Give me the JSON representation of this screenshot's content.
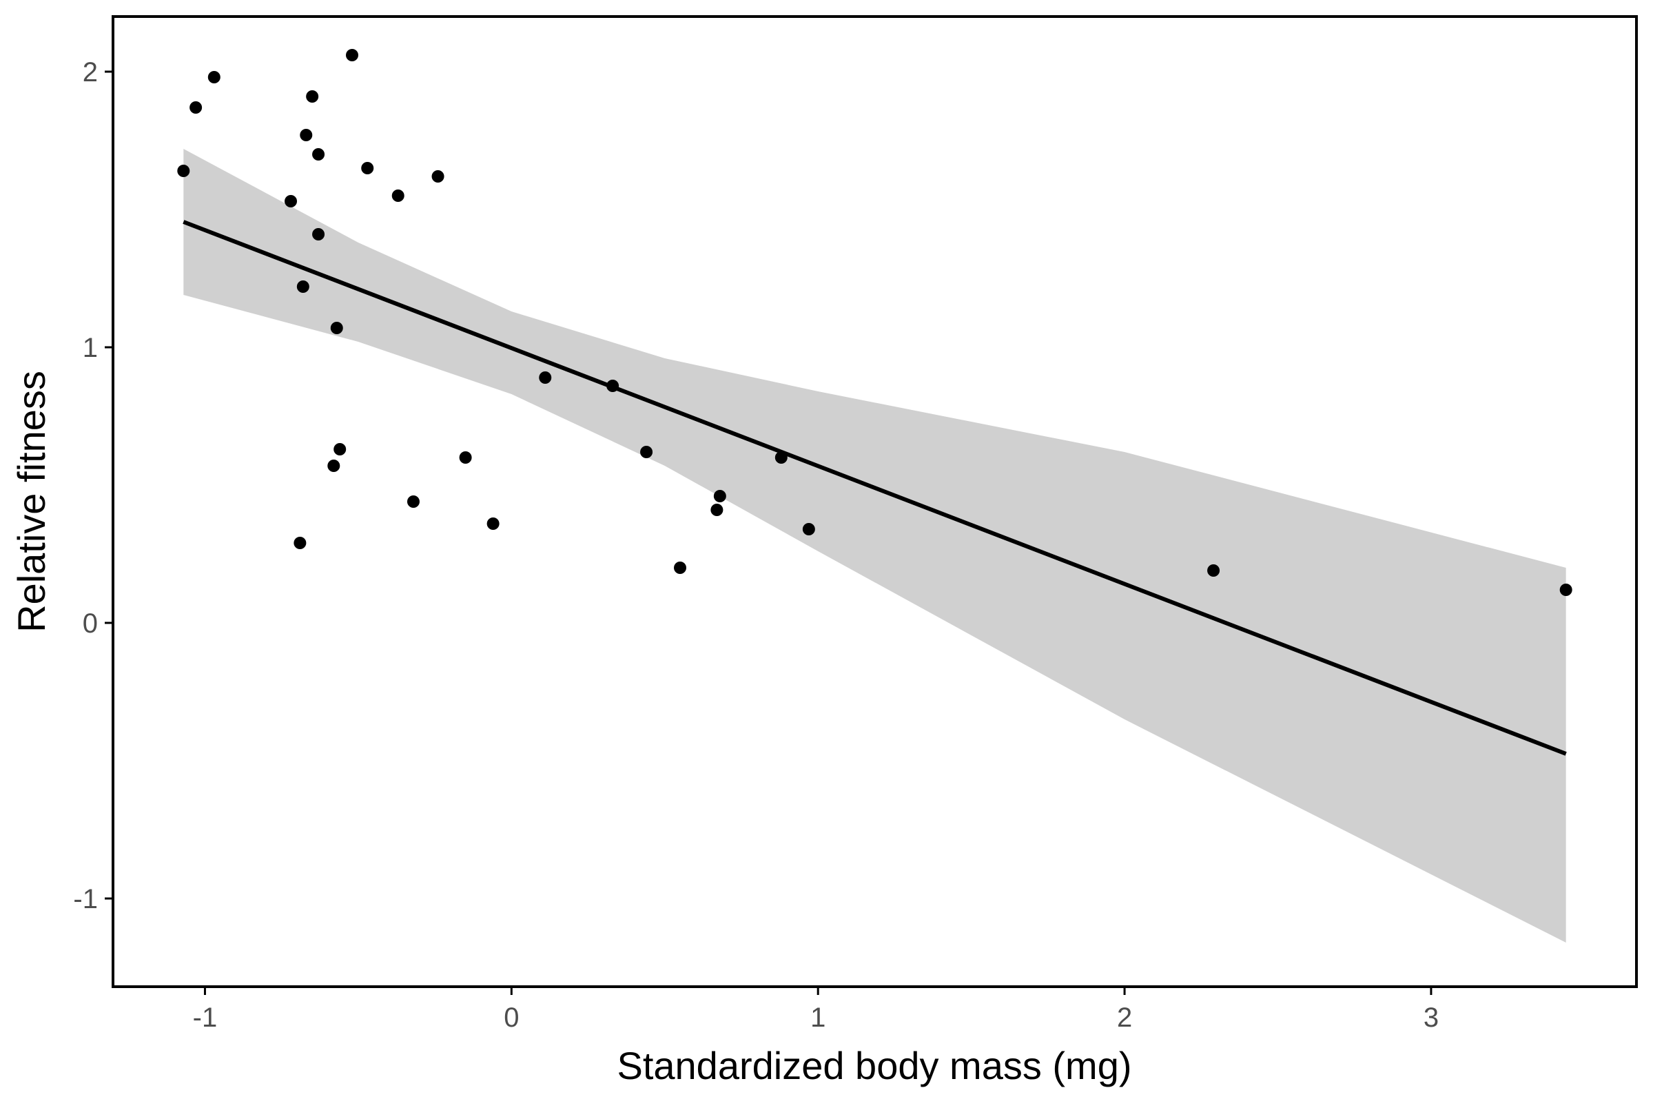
{
  "chart_data": {
    "type": "scatter",
    "title": "",
    "xlabel": "Standardized body mass (mg)",
    "ylabel": "Relative fitness",
    "xlim": [
      -1.3,
      3.67
    ],
    "ylim": [
      -1.32,
      2.2
    ],
    "xticks": [
      -1,
      0,
      1,
      2,
      3
    ],
    "yticks": [
      -1,
      0,
      1,
      2
    ],
    "grid": false,
    "legend": "none",
    "colors": {
      "points": "#000000",
      "fit_line": "#000000",
      "confidence_band": "#d0d0d0",
      "axis": "#000000",
      "tick_label": "#4d4d4d"
    },
    "points": [
      {
        "x": -1.07,
        "y": 1.64
      },
      {
        "x": -1.03,
        "y": 1.87
      },
      {
        "x": -0.97,
        "y": 1.98
      },
      {
        "x": -0.72,
        "y": 1.53
      },
      {
        "x": -0.67,
        "y": 1.77
      },
      {
        "x": -0.65,
        "y": 1.91
      },
      {
        "x": -0.63,
        "y": 1.7
      },
      {
        "x": -0.63,
        "y": 1.41
      },
      {
        "x": -0.68,
        "y": 1.22
      },
      {
        "x": -0.57,
        "y": 1.07
      },
      {
        "x": -0.52,
        "y": 2.06
      },
      {
        "x": -0.47,
        "y": 1.65
      },
      {
        "x": -0.37,
        "y": 1.55
      },
      {
        "x": -0.24,
        "y": 1.62
      },
      {
        "x": -0.56,
        "y": 0.63
      },
      {
        "x": -0.58,
        "y": 0.57
      },
      {
        "x": -0.69,
        "y": 0.29
      },
      {
        "x": -0.32,
        "y": 0.44
      },
      {
        "x": -0.15,
        "y": 0.6
      },
      {
        "x": -0.06,
        "y": 0.36
      },
      {
        "x": 0.11,
        "y": 0.89
      },
      {
        "x": 0.33,
        "y": 0.86
      },
      {
        "x": 0.44,
        "y": 0.62
      },
      {
        "x": 0.55,
        "y": 0.2
      },
      {
        "x": 0.68,
        "y": 0.46
      },
      {
        "x": 0.67,
        "y": 0.41
      },
      {
        "x": 0.88,
        "y": 0.6
      },
      {
        "x": 0.97,
        "y": 0.34
      },
      {
        "x": 2.29,
        "y": 0.19
      },
      {
        "x": 3.44,
        "y": 0.12
      }
    ],
    "fit_line": {
      "x": [
        -1.07,
        3.44
      ],
      "y": [
        1.455,
        -0.475
      ]
    },
    "confidence_band": {
      "x": [
        -1.07,
        -0.5,
        0,
        0.5,
        1,
        2,
        3.44
      ],
      "upper": [
        1.72,
        1.38,
        1.13,
        0.96,
        0.84,
        0.62,
        0.2
      ],
      "lower": [
        1.19,
        1.02,
        0.83,
        0.57,
        0.26,
        -0.35,
        -1.16
      ]
    }
  }
}
